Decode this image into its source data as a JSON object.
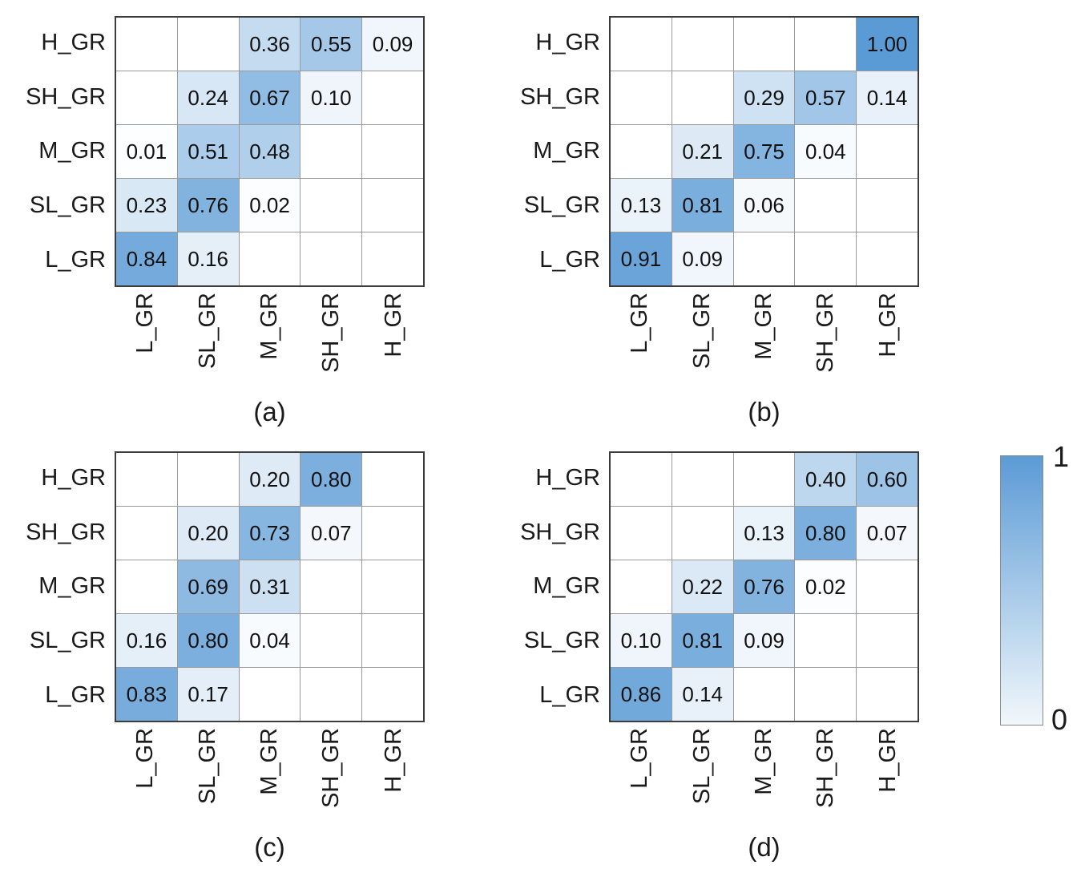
{
  "figure": {
    "row_labels": [
      "H_GR",
      "SH_GR",
      "M_GR",
      "SL_GR",
      "L_GR"
    ],
    "col_labels": [
      "L_GR",
      "SL_GR",
      "M_GR",
      "SH_GR",
      "H_GR"
    ],
    "colors": {
      "value_max": "#5b9bd5",
      "value_min": "#ffffff",
      "colorbar_bottom": "#f1f7fb",
      "grid_line": "#9a9a9a",
      "outer_border": "#3c3c3c",
      "text": "#1a1a1a"
    }
  },
  "colorbar": {
    "max_label": "1",
    "min_label": "0"
  },
  "chart_data": [
    {
      "type": "heatmap",
      "title": "(a)",
      "rows": [
        "H_GR",
        "SH_GR",
        "M_GR",
        "SL_GR",
        "L_GR"
      ],
      "cols": [
        "L_GR",
        "SL_GR",
        "M_GR",
        "SH_GR",
        "H_GR"
      ],
      "values": [
        [
          null,
          null,
          0.36,
          0.55,
          0.09
        ],
        [
          null,
          0.24,
          0.67,
          0.1,
          null
        ],
        [
          0.01,
          0.51,
          0.48,
          null,
          null
        ],
        [
          0.23,
          0.76,
          0.02,
          null,
          null
        ],
        [
          0.84,
          0.16,
          null,
          null,
          null
        ]
      ],
      "vmin": 0,
      "vmax": 1,
      "colormap": "white-to-blue",
      "value_format": "0.00"
    },
    {
      "type": "heatmap",
      "title": "(b)",
      "rows": [
        "H_GR",
        "SH_GR",
        "M_GR",
        "SL_GR",
        "L_GR"
      ],
      "cols": [
        "L_GR",
        "SL_GR",
        "M_GR",
        "SH_GR",
        "H_GR"
      ],
      "values": [
        [
          null,
          null,
          null,
          null,
          1.0
        ],
        [
          null,
          null,
          0.29,
          0.57,
          0.14
        ],
        [
          null,
          0.21,
          0.75,
          0.04,
          null
        ],
        [
          0.13,
          0.81,
          0.06,
          null,
          null
        ],
        [
          0.91,
          0.09,
          null,
          null,
          null
        ]
      ],
      "vmin": 0,
      "vmax": 1,
      "colormap": "white-to-blue",
      "value_format": "0.00"
    },
    {
      "type": "heatmap",
      "title": "(c)",
      "rows": [
        "H_GR",
        "SH_GR",
        "M_GR",
        "SL_GR",
        "L_GR"
      ],
      "cols": [
        "L_GR",
        "SL_GR",
        "M_GR",
        "SH_GR",
        "H_GR"
      ],
      "values": [
        [
          null,
          null,
          0.2,
          0.8,
          null
        ],
        [
          null,
          0.2,
          0.73,
          0.07,
          null
        ],
        [
          null,
          0.69,
          0.31,
          null,
          null
        ],
        [
          0.16,
          0.8,
          0.04,
          null,
          null
        ],
        [
          0.83,
          0.17,
          null,
          null,
          null
        ]
      ],
      "vmin": 0,
      "vmax": 1,
      "colormap": "white-to-blue",
      "value_format": "0.00"
    },
    {
      "type": "heatmap",
      "title": "(d)",
      "rows": [
        "H_GR",
        "SH_GR",
        "M_GR",
        "SL_GR",
        "L_GR"
      ],
      "cols": [
        "L_GR",
        "SL_GR",
        "M_GR",
        "SH_GR",
        "H_GR"
      ],
      "values": [
        [
          null,
          null,
          null,
          0.4,
          0.6
        ],
        [
          null,
          null,
          0.13,
          0.8,
          0.07
        ],
        [
          null,
          0.22,
          0.76,
          0.02,
          null
        ],
        [
          0.1,
          0.81,
          0.09,
          null,
          null
        ],
        [
          0.86,
          0.14,
          null,
          null,
          null
        ]
      ],
      "vmin": 0,
      "vmax": 1,
      "colormap": "white-to-blue",
      "value_format": "0.00"
    }
  ]
}
